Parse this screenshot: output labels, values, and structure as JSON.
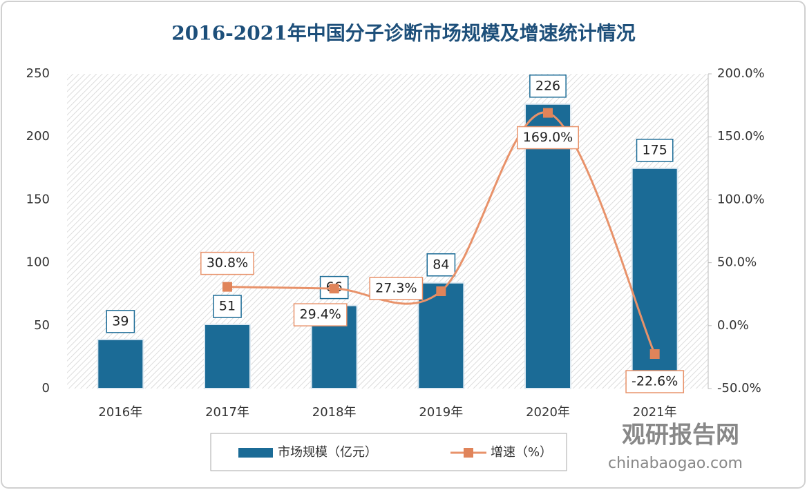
{
  "chart_data": {
    "type": "bar",
    "title": "2016-2021年中国分子诊断市场规模及增速统计情况",
    "categories": [
      "2016年",
      "2017年",
      "2018年",
      "2019年",
      "2020年",
      "2021年"
    ],
    "series": [
      {
        "name": "市场规模（亿元）",
        "color": "#1b6b96",
        "values": [
          39,
          51,
          66,
          84,
          226,
          175
        ]
      },
      {
        "name": "增速（%）",
        "color": "#e8926a",
        "type": "line",
        "axis": "y2",
        "values": [
          null,
          30.8,
          29.4,
          27.3,
          169.0,
          -22.6
        ],
        "value_labels": [
          null,
          "30.8%",
          "29.4%",
          "27.3%",
          "169.0%",
          "-22.6%"
        ]
      }
    ],
    "ylim": [
      0,
      250
    ],
    "yticks": [
      0,
      50,
      100,
      150,
      200,
      250
    ],
    "y2lim": [
      -50,
      200
    ],
    "y2ticks": [
      {
        "value": -50,
        "label": "-50.0%"
      },
      {
        "value": 0,
        "label": "0.0%"
      },
      {
        "value": 50,
        "label": "50.0%"
      },
      {
        "value": 100,
        "label": "100.0%"
      },
      {
        "value": 150,
        "label": "150.0%"
      },
      {
        "value": 200,
        "label": "200.0%"
      }
    ],
    "watermark": {
      "brand": "观研报告网",
      "url": "chinabaogao.com"
    }
  }
}
